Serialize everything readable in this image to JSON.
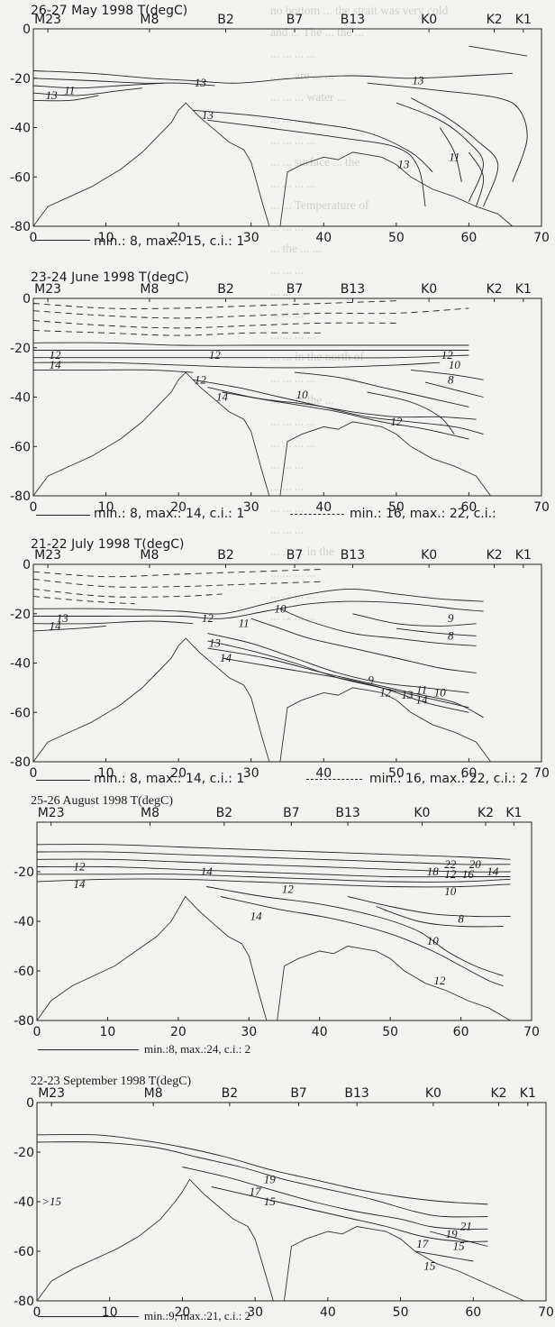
{
  "chart_data": [
    {
      "type": "contour",
      "title": "26-27 May 1998 T(degC)",
      "stations": [
        "M23",
        "M8",
        "B2",
        "B7",
        "B13",
        "K0",
        "K2",
        "K1"
      ],
      "xlim": [
        0,
        70
      ],
      "ylim": [
        -80,
        0
      ],
      "xticks": [
        "0",
        "10",
        "20",
        "30",
        "40",
        "50",
        "60",
        "70"
      ],
      "yticks": [
        "0",
        "-20",
        "-40",
        "-60",
        "-80"
      ],
      "stats_solid": "min.: 8, max.: 15, c.i.: 1",
      "stats_dashed": "",
      "contour_labels": [
        {
          "text": "13",
          "x": 23,
          "y": -22
        },
        {
          "text": "13",
          "x": 53,
          "y": -21
        },
        {
          "text": "13",
          "x": 2.5,
          "y": -27
        },
        {
          "text": "11",
          "x": 5,
          "y": -25
        },
        {
          "text": "13",
          "x": 24,
          "y": -35
        },
        {
          "text": "11",
          "x": 58,
          "y": -52
        },
        {
          "text": "13",
          "x": 51,
          "y": -55
        }
      ]
    },
    {
      "type": "contour",
      "title": "23-24 June 1998 T(degC)",
      "stations": [
        "M23",
        "M8",
        "B2",
        "B7",
        "B13",
        "K0",
        "K2",
        "K1"
      ],
      "xlim": [
        0,
        70
      ],
      "ylim": [
        -80,
        0
      ],
      "xticks": [
        "0",
        "10",
        "20",
        "30",
        "40",
        "50",
        "60",
        "70"
      ],
      "yticks": [
        "0",
        "-20",
        "-40",
        "-60",
        "-80"
      ],
      "stats_solid": "min.: 8, max.: 14, c.i.: 1",
      "stats_dashed": "min.: 16, max.: 22, c.i.:",
      "contour_labels": [
        {
          "text": "12",
          "x": 3,
          "y": -23
        },
        {
          "text": "14",
          "x": 3,
          "y": -27
        },
        {
          "text": "12",
          "x": 25,
          "y": -23
        },
        {
          "text": "12",
          "x": 23,
          "y": -33
        },
        {
          "text": "14",
          "x": 26,
          "y": -40
        },
        {
          "text": "10",
          "x": 37,
          "y": -39
        },
        {
          "text": "12",
          "x": 57,
          "y": -23
        },
        {
          "text": "10",
          "x": 58,
          "y": -27
        },
        {
          "text": "8",
          "x": 57.5,
          "y": -33
        },
        {
          "text": "12",
          "x": 50,
          "y": -50
        }
      ]
    },
    {
      "type": "contour",
      "title": "21-22 July 1998 T(degC)",
      "stations": [
        "M23",
        "M8",
        "B2",
        "B7",
        "B13",
        "K0",
        "K2",
        "K1"
      ],
      "xlim": [
        0,
        70
      ],
      "ylim": [
        -80,
        0
      ],
      "xticks": [
        "0",
        "10",
        "20",
        "30",
        "40",
        "50",
        "60",
        "70"
      ],
      "yticks": [
        "0",
        "-20",
        "-40",
        "-60",
        "-80"
      ],
      "stats_solid": "min.: 8, max.: 14, c.i.: 1",
      "stats_dashed": "min.: 16, max.: 22, c.i.: 2",
      "contour_labels": [
        {
          "text": "13",
          "x": 4,
          "y": -22
        },
        {
          "text": "14",
          "x": 3,
          "y": -25
        },
        {
          "text": "12",
          "x": 24,
          "y": -22
        },
        {
          "text": "11",
          "x": 29,
          "y": -24
        },
        {
          "text": "10",
          "x": 34,
          "y": -18
        },
        {
          "text": "13",
          "x": 25,
          "y": -32
        },
        {
          "text": "14",
          "x": 26.5,
          "y": -38
        },
        {
          "text": "9",
          "x": 57.5,
          "y": -22
        },
        {
          "text": "8",
          "x": 57.5,
          "y": -29
        },
        {
          "text": "9",
          "x": 46.5,
          "y": -47
        },
        {
          "text": "12",
          "x": 48.5,
          "y": -52
        },
        {
          "text": "13",
          "x": 51.5,
          "y": -53
        },
        {
          "text": "11",
          "x": 53.5,
          "y": -51
        },
        {
          "text": "14",
          "x": 53.5,
          "y": -55
        },
        {
          "text": "10",
          "x": 56,
          "y": -52
        }
      ]
    },
    {
      "type": "contour",
      "title": "25-26 August 1998 T(degC)",
      "stations": [
        "M23",
        "M8",
        "B2",
        "B7",
        "B13",
        "K0",
        "K2",
        "K1"
      ],
      "xlim": [
        0,
        70
      ],
      "ylim": [
        -80,
        0
      ],
      "xticks": [
        "0",
        "10",
        "20",
        "30",
        "40",
        "50",
        "60",
        "70"
      ],
      "yticks": [
        "-20",
        "-40",
        "-60",
        "-80"
      ],
      "stats_solid": "min.:8, max.:24, c.i.: 2",
      "stats_dashed": "",
      "contour_labels": [
        {
          "text": "12",
          "x": 6,
          "y": -18
        },
        {
          "text": "14",
          "x": 6,
          "y": -25
        },
        {
          "text": "14",
          "x": 24,
          "y": -20
        },
        {
          "text": "12",
          "x": 35.5,
          "y": -27
        },
        {
          "text": "14",
          "x": 31,
          "y": -38
        },
        {
          "text": "22",
          "x": 58.5,
          "y": -17
        },
        {
          "text": "20",
          "x": 62,
          "y": -17
        },
        {
          "text": "18",
          "x": 56,
          "y": -20
        },
        {
          "text": "12",
          "x": 58.5,
          "y": -21
        },
        {
          "text": "16",
          "x": 61,
          "y": -21
        },
        {
          "text": "14",
          "x": 64.5,
          "y": -20
        },
        {
          "text": "10",
          "x": 58.5,
          "y": -28
        },
        {
          "text": "8",
          "x": 60,
          "y": -39
        },
        {
          "text": "10",
          "x": 56,
          "y": -48
        },
        {
          "text": "12",
          "x": 57,
          "y": -64
        }
      ]
    },
    {
      "type": "contour",
      "title": "22-23 September 1998 T(degC)",
      "stations": [
        "M23",
        "M8",
        "B2",
        "B7",
        "B13",
        "K0",
        "K2",
        "K1"
      ],
      "xlim": [
        0,
        70
      ],
      "ylim": [
        -80,
        0
      ],
      "xticks": [
        "0",
        "10",
        "20",
        "30",
        "40",
        "50",
        "60",
        "70"
      ],
      "yticks": [
        "0",
        "-20",
        "-40",
        "-60",
        "-80"
      ],
      "stats_solid": "min.:9, max.:21, c.i.: 2",
      "stats_dashed": "",
      "contour_labels": [
        {
          "text": ">15",
          "x": 2,
          "y": -40
        },
        {
          "text": "19",
          "x": 32,
          "y": -31
        },
        {
          "text": "17",
          "x": 30,
          "y": -36
        },
        {
          "text": "15",
          "x": 32,
          "y": -40
        },
        {
          "text": "21",
          "x": 59,
          "y": -50
        },
        {
          "text": "19",
          "x": 57,
          "y": -53
        },
        {
          "text": "17",
          "x": 53,
          "y": -57
        },
        {
          "text": "15",
          "x": 58,
          "y": -58
        },
        {
          "text": "15",
          "x": 54,
          "y": -66
        }
      ]
    }
  ],
  "background_text": [
    "no bottom ... the strait was very cold",
    "and ... The ... the ...",
    "... ... ... ...",
    "... ... are ... ...",
    "... ... ... water ...",
    "... ... ... ...",
    "... ... ... ...",
    "... ... surface ... the",
    "... ... ... ...",
    "... ... Temperature of",
    "... ... ...",
    "... the ... ...",
    "... ... ...",
    "... ... ...",
    "... ... ...",
    "... ... ... ...",
    "... ... in the north of",
    "... ... ... ...",
    "... ... in the ...",
    "... ... ... ...",
    "... ... ... ...",
    "... ... ...",
    "... ... ...",
    "... ... ...",
    "... ... ...",
    "... ... ... in the",
    "... ... ... ...",
    "... ... ... ...",
    "... ... ... ..."
  ]
}
